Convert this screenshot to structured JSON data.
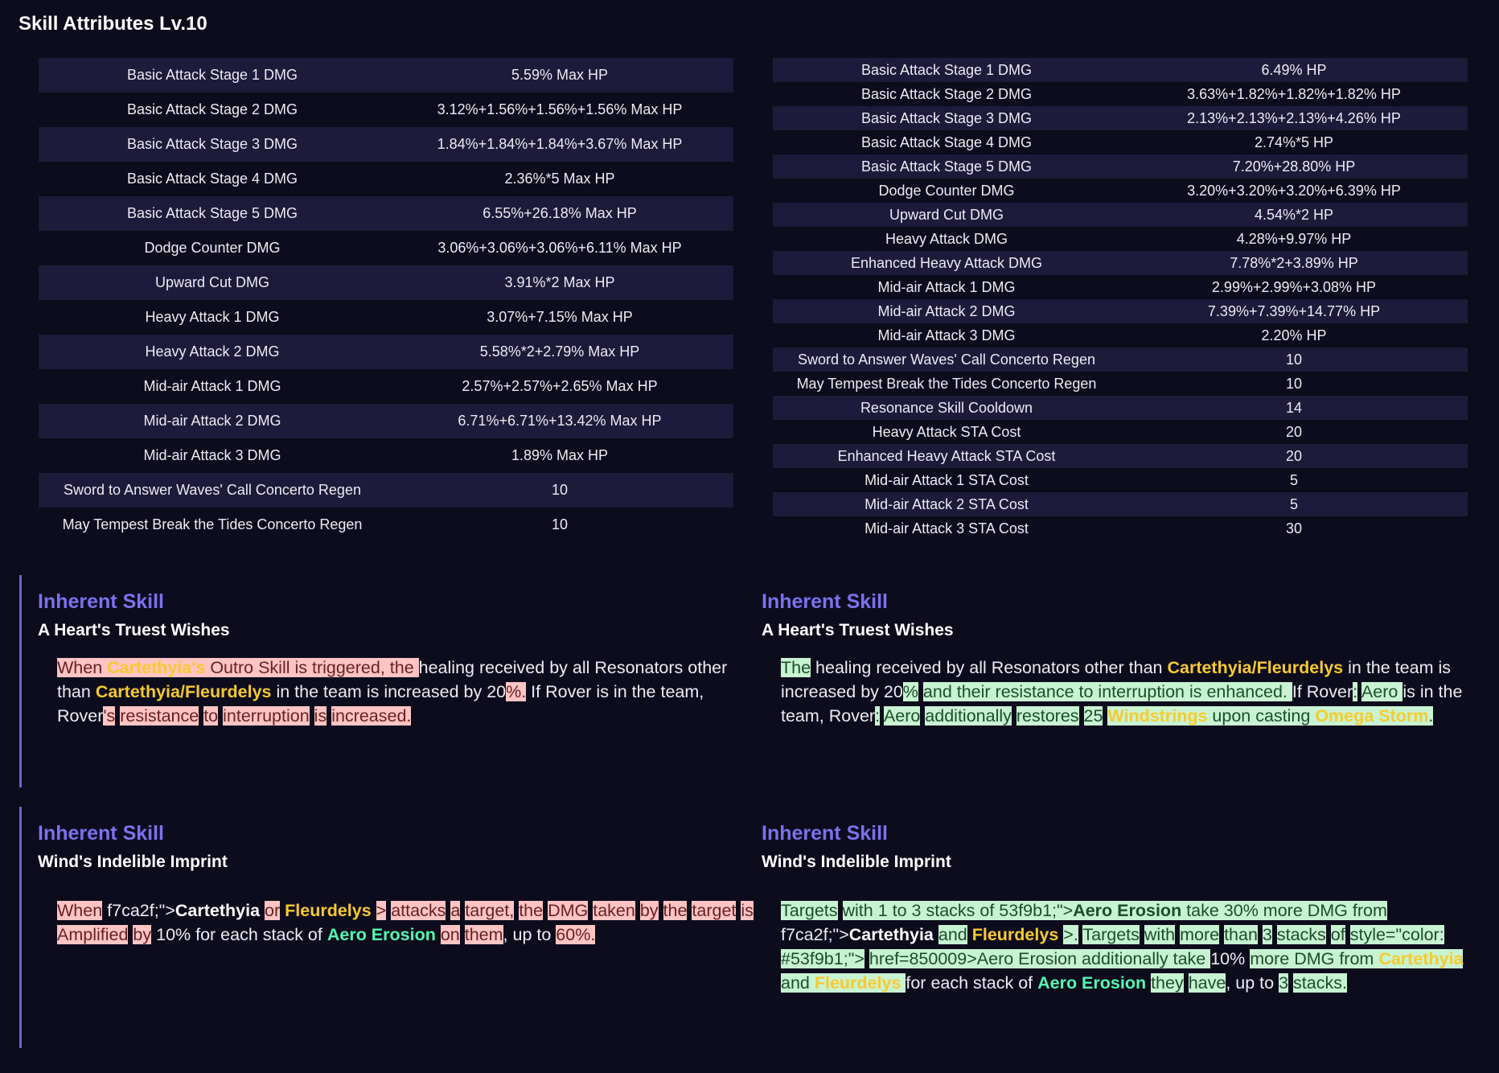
{
  "page_title": "Skill Attributes Lv.10",
  "left_table": [
    {
      "name": "Basic Attack Stage 1 DMG",
      "value": "5.59% Max HP"
    },
    {
      "name": "Basic Attack Stage 2 DMG",
      "value": "3.12%+1.56%+1.56%+1.56% Max HP"
    },
    {
      "name": "Basic Attack Stage 3 DMG",
      "value": "1.84%+1.84%+1.84%+3.67% Max HP"
    },
    {
      "name": "Basic Attack Stage 4 DMG",
      "value": "2.36%*5 Max HP"
    },
    {
      "name": "Basic Attack Stage 5 DMG",
      "value": "6.55%+26.18% Max HP"
    },
    {
      "name": "Dodge Counter DMG",
      "value": "3.06%+3.06%+3.06%+6.11% Max HP"
    },
    {
      "name": "Upward Cut DMG",
      "value": "3.91%*2 Max HP"
    },
    {
      "name": "Heavy Attack 1 DMG",
      "value": "3.07%+7.15% Max HP"
    },
    {
      "name": "Heavy Attack 2 DMG",
      "value": "5.58%*2+2.79% Max HP"
    },
    {
      "name": "Mid-air Attack 1 DMG",
      "value": "2.57%+2.57%+2.65% Max HP"
    },
    {
      "name": "Mid-air Attack 2 DMG",
      "value": "6.71%+6.71%+13.42% Max HP"
    },
    {
      "name": "Mid-air Attack 3 DMG",
      "value": "1.89% Max HP"
    },
    {
      "name": "Sword to Answer Waves' Call Concerto Regen",
      "value": "10"
    },
    {
      "name": "May Tempest Break the Tides Concerto Regen",
      "value": "10"
    }
  ],
  "right_table": [
    {
      "name": "Basic Attack Stage 1 DMG",
      "value": "6.49% HP"
    },
    {
      "name": "Basic Attack Stage 2 DMG",
      "value": "3.63%+1.82%+1.82%+1.82% HP"
    },
    {
      "name": "Basic Attack Stage 3 DMG",
      "value": "2.13%+2.13%+2.13%+4.26% HP"
    },
    {
      "name": "Basic Attack Stage 4 DMG",
      "value": "2.74%*5 HP"
    },
    {
      "name": "Basic Attack Stage 5 DMG",
      "value": "7.20%+28.80% HP"
    },
    {
      "name": "Dodge Counter DMG",
      "value": "3.20%+3.20%+3.20%+6.39% HP"
    },
    {
      "name": "Upward Cut DMG",
      "value": "4.54%*2 HP"
    },
    {
      "name": "Heavy Attack DMG",
      "value": "4.28%+9.97% HP"
    },
    {
      "name": "Enhanced Heavy Attack DMG",
      "value": "7.78%*2+3.89% HP"
    },
    {
      "name": "Mid-air Attack 1 DMG",
      "value": "2.99%+2.99%+3.08% HP"
    },
    {
      "name": "Mid-air Attack 2 DMG",
      "value": "7.39%+7.39%+14.77% HP"
    },
    {
      "name": "Mid-air Attack 3 DMG",
      "value": "2.20% HP"
    },
    {
      "name": "Sword to Answer Waves' Call Concerto Regen",
      "value": "10"
    },
    {
      "name": "May Tempest Break the Tides Concerto Regen",
      "value": "10"
    },
    {
      "name": "Resonance Skill Cooldown",
      "value": "14"
    },
    {
      "name": "Heavy Attack STA Cost",
      "value": "20"
    },
    {
      "name": "Enhanced Heavy Attack STA Cost",
      "value": "20"
    },
    {
      "name": "Mid-air Attack 1 STA Cost",
      "value": "5"
    },
    {
      "name": "Mid-air Attack 2 STA Cost",
      "value": "5"
    },
    {
      "name": "Mid-air Attack 3 STA Cost",
      "value": "30"
    }
  ],
  "skills": [
    {
      "type": "Inherent Skill",
      "name": "A Heart's Truest Wishes",
      "highlight": "removed",
      "segments": [
        {
          "t": "When ",
          "h": "hp"
        },
        {
          "t": " ",
          "h": ""
        },
        {
          "t": "Cartethyia's",
          "h": "hp",
          "c": "y"
        },
        {
          "t": " Outro Skill is triggered, the ",
          "h": "hp"
        },
        {
          "t": "healing received by all Resonators other than ",
          "h": ""
        },
        {
          "t": "Cartethyia/Fleurdelys",
          "h": "",
          "c": "y"
        },
        {
          "t": " in the team is increased by 20",
          "h": ""
        },
        {
          "t": "%.",
          "h": "hp"
        },
        {
          "t": "  If Rover   is in the team, Rover",
          "h": ""
        },
        {
          "t": "'s",
          "h": "hp"
        },
        {
          "t": "  ",
          "h": ""
        },
        {
          "t": "resistance",
          "h": "hp"
        },
        {
          "t": "  ",
          "h": ""
        },
        {
          "t": "to",
          "h": "hp"
        },
        {
          "t": "  ",
          "h": ""
        },
        {
          "t": "interruption",
          "h": "hp"
        },
        {
          "t": "  ",
          "h": ""
        },
        {
          "t": "is",
          "h": "hp"
        },
        {
          "t": "  ",
          "h": ""
        },
        {
          "t": "increased.",
          "h": "hp"
        }
      ]
    },
    {
      "type": "Inherent Skill",
      "name": "A Heart's Truest Wishes",
      "highlight": "added",
      "segments": [
        {
          "t": "The",
          "h": "hg"
        },
        {
          "t": "  healing received by all Resonators other than ",
          "h": ""
        },
        {
          "t": "Cartethyia/Fleurdelys",
          "h": "",
          "c": "y"
        },
        {
          "t": " in the team is increased by 20",
          "h": ""
        },
        {
          "t": "%",
          "h": "hg"
        },
        {
          "t": " ",
          "h": ""
        },
        {
          "t": " and their resistance to interruption is enhanced. ",
          "h": "hg"
        },
        {
          "t": "If Rover",
          "h": ""
        },
        {
          "t": ":",
          "h": "hg"
        },
        {
          "t": "  ",
          "h": ""
        },
        {
          "t": "Aero ",
          "h": "hg"
        },
        {
          "t": " is in the team, Rover",
          "h": ""
        },
        {
          "t": ":",
          "h": "hg"
        },
        {
          "t": "  ",
          "h": ""
        },
        {
          "t": "Aero",
          "h": "hg"
        },
        {
          "t": "  ",
          "h": ""
        },
        {
          "t": "additionally",
          "h": "hg"
        },
        {
          "t": "  ",
          "h": ""
        },
        {
          "t": "restores",
          "h": "hg"
        },
        {
          "t": "  ",
          "h": ""
        },
        {
          "t": "25",
          "h": "hg"
        },
        {
          "t": "  ",
          "h": ""
        },
        {
          "t": "Windstrings",
          "h": "hg",
          "c": "y"
        },
        {
          "t": " upon casting ",
          "h": "hg"
        },
        {
          "t": "Omega Storm",
          "h": "hg",
          "c": "y"
        },
        {
          "t": ".",
          "h": "hg"
        }
      ]
    },
    {
      "type": "Inherent Skill",
      "name": "Wind's Indelible Imprint",
      "highlight": "removed",
      "segments": [
        {
          "t": "When",
          "h": "hp"
        },
        {
          "t": "   f7ca2f;\">",
          "h": ""
        },
        {
          "t": "Cartethyia",
          "h": "",
          "c": "wb"
        },
        {
          "t": " ",
          "h": ""
        },
        {
          "t": "or",
          "h": "hp"
        },
        {
          "t": " ",
          "h": ""
        },
        {
          "t": "Fleurdelys",
          "h": "",
          "c": "y"
        },
        {
          "t": " ",
          "h": ""
        },
        {
          "t": ">",
          "h": "hp"
        },
        {
          "t": "  ",
          "h": ""
        },
        {
          "t": "attacks",
          "h": "hp"
        },
        {
          "t": "  ",
          "h": ""
        },
        {
          "t": "a",
          "h": "hp"
        },
        {
          "t": "  ",
          "h": ""
        },
        {
          "t": "target,",
          "h": "hp"
        },
        {
          "t": "  ",
          "h": ""
        },
        {
          "t": "the",
          "h": "hp"
        },
        {
          "t": "  ",
          "h": ""
        },
        {
          "t": "DMG",
          "h": "hp"
        },
        {
          "t": "  ",
          "h": ""
        },
        {
          "t": "taken",
          "h": "hp"
        },
        {
          "t": "  ",
          "h": ""
        },
        {
          "t": "by",
          "h": "hp"
        },
        {
          "t": " ",
          "h": ""
        },
        {
          "t": "the",
          "h": "hp"
        },
        {
          "t": "  ",
          "h": ""
        },
        {
          "t": "target",
          "h": "hp"
        },
        {
          "t": "  ",
          "h": ""
        },
        {
          "t": "is",
          "h": "hp"
        },
        {
          "t": "  ",
          "h": ""
        },
        {
          "t": "Amplified",
          "h": "hp"
        },
        {
          "t": "  ",
          "h": ""
        },
        {
          "t": "by",
          "h": "hp"
        },
        {
          "t": "  10%  for each stack of ",
          "h": ""
        },
        {
          "t": "Aero Erosion",
          "h": "",
          "c": "g"
        },
        {
          "t": " ",
          "h": ""
        },
        {
          "t": "on",
          "h": "hp"
        },
        {
          "t": "  ",
          "h": ""
        },
        {
          "t": "them",
          "h": "hp"
        },
        {
          "t": ", up to ",
          "h": ""
        },
        {
          "t": "60%.",
          "h": "hp"
        }
      ]
    },
    {
      "type": "Inherent Skill",
      "name": "Wind's Indelible Imprint",
      "highlight": "added",
      "segments": [
        {
          "t": "Targets",
          "h": "hg"
        },
        {
          "t": "  ",
          "h": ""
        },
        {
          "t": "with 1 to 3 stacks of ",
          "h": "hg"
        },
        {
          "t": "  ",
          "h": ""
        },
        {
          "t": "53f9b1;\">",
          "h": "hg"
        },
        {
          "t": "Aero Erosion",
          "h": "hg",
          "c": "db"
        },
        {
          "t": " take 30% more DMG from ",
          "h": "hg"
        },
        {
          "t": " f7ca2f;\">",
          "h": ""
        },
        {
          "t": "Cartethyia",
          "h": "",
          "c": "wb"
        },
        {
          "t": " ",
          "h": ""
        },
        {
          "t": "and",
          "h": "hg"
        },
        {
          "t": " ",
          "h": ""
        },
        {
          "t": "Fleurdelys",
          "h": "",
          "c": "y"
        },
        {
          "t": " ",
          "h": ""
        },
        {
          "t": ">.",
          "h": "hg"
        },
        {
          "t": "  ",
          "h": ""
        },
        {
          "t": "Targets",
          "h": "hg"
        },
        {
          "t": "  ",
          "h": ""
        },
        {
          "t": "with",
          "h": "hg"
        },
        {
          "t": "  ",
          "h": ""
        },
        {
          "t": "more",
          "h": "hg"
        },
        {
          "t": "  ",
          "h": ""
        },
        {
          "t": "than",
          "h": "hg"
        },
        {
          "t": "  ",
          "h": ""
        },
        {
          "t": "3",
          "h": "hg"
        },
        {
          "t": "  ",
          "h": ""
        },
        {
          "t": "stacks",
          "h": "hg"
        },
        {
          "t": "  ",
          "h": ""
        },
        {
          "t": "of",
          "h": "hg"
        },
        {
          "t": "  ",
          "h": ""
        },
        {
          "t": " ",
          "h": "hg"
        },
        {
          "t": " style=\"color: ",
          "h": "hg"
        },
        {
          "t": " ",
          "h": ""
        },
        {
          "t": " #53f9b1;\">",
          "h": "hg"
        },
        {
          "t": "  ",
          "h": ""
        },
        {
          "t": "href=850009>Aero ",
          "h": "hg"
        },
        {
          "t": " ",
          "h": ""
        },
        {
          "t": "Erosion ",
          "h": "hg"
        },
        {
          "t": " ",
          "h": ""
        },
        {
          "t": "additionally take ",
          "h": "hg"
        },
        {
          "t": "10% ",
          "h": ""
        },
        {
          "t": " more DMG from ",
          "h": "hg"
        },
        {
          "t": "Cartethyia",
          "h": "hg",
          "c": "y"
        },
        {
          "t": " and ",
          "h": "hg"
        },
        {
          "t": "Fleurdelys ",
          "h": "hg",
          "c": "y"
        },
        {
          "t": " for each stack of ",
          "h": ""
        },
        {
          "t": "Aero Erosion",
          "h": "",
          "c": "g"
        },
        {
          "t": "  ",
          "h": ""
        },
        {
          "t": "they",
          "h": "hg"
        },
        {
          "t": "  ",
          "h": ""
        },
        {
          "t": "have",
          "h": "hg"
        },
        {
          "t": ", up to  ",
          "h": ""
        },
        {
          "t": "3",
          "h": "hg"
        },
        {
          "t": " ",
          "h": ""
        },
        {
          "t": "stacks.",
          "h": "hg"
        }
      ]
    }
  ],
  "colors": {
    "background": "#0d0c1c",
    "row_stripe": "#1d1a3a",
    "skill_type": "#7b72ee",
    "removed_highlight": "#ffc4c4",
    "added_highlight": "#c8f3d2",
    "name_yellow": "#f7ca2f",
    "aero_green": "#53f9b1",
    "bar": "#6b63d8"
  }
}
